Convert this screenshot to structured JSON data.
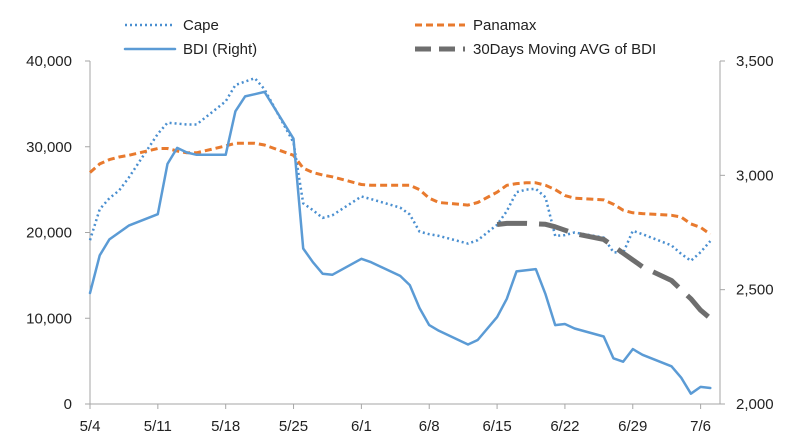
{
  "chart_data": {
    "type": "line",
    "title": "",
    "xlabel": "",
    "ylabel": "",
    "grid": false,
    "legend_position": "top",
    "x_axis": {
      "type": "date",
      "min": "2020-05-04",
      "max": "2020-07-08",
      "tick_labels": [
        {
          "date": "2020-05-04",
          "label": "5/4"
        },
        {
          "date": "2020-05-11",
          "label": "5/11"
        },
        {
          "date": "2020-05-18",
          "label": "5/18"
        },
        {
          "date": "2020-05-25",
          "label": "5/25"
        },
        {
          "date": "2020-06-01",
          "label": "6/1"
        },
        {
          "date": "2020-06-08",
          "label": "6/8"
        },
        {
          "date": "2020-06-15",
          "label": "6/15"
        },
        {
          "date": "2020-06-22",
          "label": "6/22"
        },
        {
          "date": "2020-06-29",
          "label": "6/29"
        },
        {
          "date": "2020-07-06",
          "label": "7/6"
        }
      ]
    },
    "y_left": {
      "min": 0,
      "max": 40000,
      "ticks": [
        0,
        10000,
        20000,
        30000,
        40000
      ],
      "tick_labels": [
        "0",
        "10,000",
        "20,000",
        "30,000",
        "40,000"
      ]
    },
    "y_right": {
      "min": 2000,
      "max": 3500,
      "ticks": [
        2000,
        2500,
        3000,
        3500
      ],
      "tick_labels": [
        "2,000",
        "2,500",
        "3,000",
        "3,500"
      ]
    },
    "series": [
      {
        "name": "Cape",
        "axis": "left",
        "color": "#4a8fd0",
        "style": "dotted",
        "points": [
          [
            "2020-05-04",
            19100
          ],
          [
            "2020-05-05",
            22700
          ],
          [
            "2020-05-06",
            24000
          ],
          [
            "2020-05-07",
            24900
          ],
          [
            "2020-05-08",
            26400
          ],
          [
            "2020-05-11",
            31500
          ],
          [
            "2020-05-12",
            32800
          ],
          [
            "2020-05-13",
            32700
          ],
          [
            "2020-05-14",
            32600
          ],
          [
            "2020-05-15",
            32600
          ],
          [
            "2020-05-18",
            35300
          ],
          [
            "2020-05-19",
            37200
          ],
          [
            "2020-05-20",
            37600
          ],
          [
            "2020-05-21",
            38000
          ],
          [
            "2020-05-22",
            36700
          ],
          [
            "2020-05-25",
            30500
          ],
          [
            "2020-05-26",
            23400
          ],
          [
            "2020-05-27",
            22600
          ],
          [
            "2020-05-28",
            21700
          ],
          [
            "2020-05-29",
            22000
          ],
          [
            "2020-06-01",
            24200
          ],
          [
            "2020-06-02",
            23900
          ],
          [
            "2020-06-05",
            22900
          ],
          [
            "2020-06-06",
            22100
          ],
          [
            "2020-06-07",
            20100
          ],
          [
            "2020-06-08",
            19800
          ],
          [
            "2020-06-09",
            19600
          ],
          [
            "2020-06-12",
            18700
          ],
          [
            "2020-06-13",
            19100
          ],
          [
            "2020-06-15",
            20900
          ],
          [
            "2020-06-16",
            22500
          ],
          [
            "2020-06-17",
            24700
          ],
          [
            "2020-06-18",
            25000
          ],
          [
            "2020-06-19",
            25100
          ],
          [
            "2020-06-20",
            24100
          ],
          [
            "2020-06-21",
            19600
          ],
          [
            "2020-06-22",
            19700
          ],
          [
            "2020-06-23",
            20000
          ],
          [
            "2020-06-26",
            19400
          ],
          [
            "2020-06-27",
            17700
          ],
          [
            "2020-06-28",
            17600
          ],
          [
            "2020-06-29",
            20200
          ],
          [
            "2020-06-30",
            19800
          ],
          [
            "2020-07-03",
            18500
          ],
          [
            "2020-07-04",
            17500
          ],
          [
            "2020-07-05",
            16700
          ],
          [
            "2020-07-06",
            17700
          ],
          [
            "2020-07-07",
            19000
          ]
        ]
      },
      {
        "name": "Panamax",
        "axis": "left",
        "color": "#e87a2e",
        "style": "dashed",
        "points": [
          [
            "2020-05-04",
            27000
          ],
          [
            "2020-05-05",
            28000
          ],
          [
            "2020-05-06",
            28500
          ],
          [
            "2020-05-07",
            28800
          ],
          [
            "2020-05-08",
            29000
          ],
          [
            "2020-05-11",
            29800
          ],
          [
            "2020-05-12",
            29800
          ],
          [
            "2020-05-13",
            29500
          ],
          [
            "2020-05-14",
            29300
          ],
          [
            "2020-05-15",
            29300
          ],
          [
            "2020-05-18",
            30100
          ],
          [
            "2020-05-19",
            30400
          ],
          [
            "2020-05-20",
            30400
          ],
          [
            "2020-05-21",
            30400
          ],
          [
            "2020-05-22",
            30200
          ],
          [
            "2020-05-25",
            29000
          ],
          [
            "2020-05-26",
            27500
          ],
          [
            "2020-05-27",
            27000
          ],
          [
            "2020-05-28",
            26700
          ],
          [
            "2020-05-29",
            26500
          ],
          [
            "2020-06-01",
            25600
          ],
          [
            "2020-06-02",
            25500
          ],
          [
            "2020-06-05",
            25500
          ],
          [
            "2020-06-06",
            25500
          ],
          [
            "2020-06-07",
            25000
          ],
          [
            "2020-06-08",
            24000
          ],
          [
            "2020-06-09",
            23500
          ],
          [
            "2020-06-12",
            23200
          ],
          [
            "2020-06-13",
            23500
          ],
          [
            "2020-06-15",
            24700
          ],
          [
            "2020-06-16",
            25500
          ],
          [
            "2020-06-17",
            25700
          ],
          [
            "2020-06-18",
            25800
          ],
          [
            "2020-06-19",
            25800
          ],
          [
            "2020-06-20",
            25500
          ],
          [
            "2020-06-21",
            25000
          ],
          [
            "2020-06-22",
            24300
          ],
          [
            "2020-06-23",
            24000
          ],
          [
            "2020-06-26",
            23800
          ],
          [
            "2020-06-27",
            23300
          ],
          [
            "2020-06-28",
            22600
          ],
          [
            "2020-06-29",
            22300
          ],
          [
            "2020-06-30",
            22200
          ],
          [
            "2020-07-03",
            22000
          ],
          [
            "2020-07-04",
            21800
          ],
          [
            "2020-07-05",
            21000
          ],
          [
            "2020-07-06",
            20600
          ],
          [
            "2020-07-07",
            19800
          ]
        ]
      },
      {
        "name": "BDI (Right)",
        "axis": "right",
        "color": "#5b9bd5",
        "style": "solid",
        "points": [
          [
            "2020-05-04",
            2485
          ],
          [
            "2020-05-05",
            2650
          ],
          [
            "2020-05-06",
            2720
          ],
          [
            "2020-05-07",
            2750
          ],
          [
            "2020-05-08",
            2780
          ],
          [
            "2020-05-11",
            2830
          ],
          [
            "2020-05-12",
            3050
          ],
          [
            "2020-05-13",
            3120
          ],
          [
            "2020-05-14",
            3100
          ],
          [
            "2020-05-15",
            3090
          ],
          [
            "2020-05-18",
            3090
          ],
          [
            "2020-05-19",
            3280
          ],
          [
            "2020-05-20",
            3345
          ],
          [
            "2020-05-21",
            3355
          ],
          [
            "2020-05-22",
            3365
          ],
          [
            "2020-05-25",
            3160
          ],
          [
            "2020-05-26",
            2680
          ],
          [
            "2020-05-27",
            2620
          ],
          [
            "2020-05-28",
            2570
          ],
          [
            "2020-05-29",
            2565
          ],
          [
            "2020-06-01",
            2635
          ],
          [
            "2020-06-02",
            2620
          ],
          [
            "2020-06-05",
            2560
          ],
          [
            "2020-06-06",
            2520
          ],
          [
            "2020-06-07",
            2420
          ],
          [
            "2020-06-08",
            2345
          ],
          [
            "2020-06-09",
            2320
          ],
          [
            "2020-06-12",
            2260
          ],
          [
            "2020-06-13",
            2280
          ],
          [
            "2020-06-15",
            2380
          ],
          [
            "2020-06-16",
            2460
          ],
          [
            "2020-06-17",
            2580
          ],
          [
            "2020-06-18",
            2585
          ],
          [
            "2020-06-19",
            2590
          ],
          [
            "2020-06-20",
            2480
          ],
          [
            "2020-06-21",
            2345
          ],
          [
            "2020-06-22",
            2350
          ],
          [
            "2020-06-23",
            2330
          ],
          [
            "2020-06-26",
            2295
          ],
          [
            "2020-06-27",
            2200
          ],
          [
            "2020-06-28",
            2185
          ],
          [
            "2020-06-29",
            2240
          ],
          [
            "2020-06-30",
            2215
          ],
          [
            "2020-07-03",
            2165
          ],
          [
            "2020-07-04",
            2115
          ],
          [
            "2020-07-05",
            2045
          ],
          [
            "2020-07-06",
            2075
          ],
          [
            "2020-07-07",
            2070
          ]
        ]
      },
      {
        "name": "30Days Moving AVG of BDI",
        "axis": "right",
        "color": "#6e6e6e",
        "style": "long-dash",
        "points": [
          [
            "2020-06-15",
            2785
          ],
          [
            "2020-06-16",
            2790
          ],
          [
            "2020-06-17",
            2790
          ],
          [
            "2020-06-18",
            2790
          ],
          [
            "2020-06-19",
            2788
          ],
          [
            "2020-06-20",
            2786
          ],
          [
            "2020-06-21",
            2775
          ],
          [
            "2020-06-22",
            2760
          ],
          [
            "2020-06-23",
            2745
          ],
          [
            "2020-06-26",
            2720
          ],
          [
            "2020-06-27",
            2690
          ],
          [
            "2020-06-28",
            2660
          ],
          [
            "2020-06-29",
            2630
          ],
          [
            "2020-06-30",
            2600
          ],
          [
            "2020-07-03",
            2540
          ],
          [
            "2020-07-04",
            2500
          ],
          [
            "2020-07-05",
            2460
          ],
          [
            "2020-07-06",
            2410
          ],
          [
            "2020-07-07",
            2375
          ]
        ]
      }
    ]
  }
}
